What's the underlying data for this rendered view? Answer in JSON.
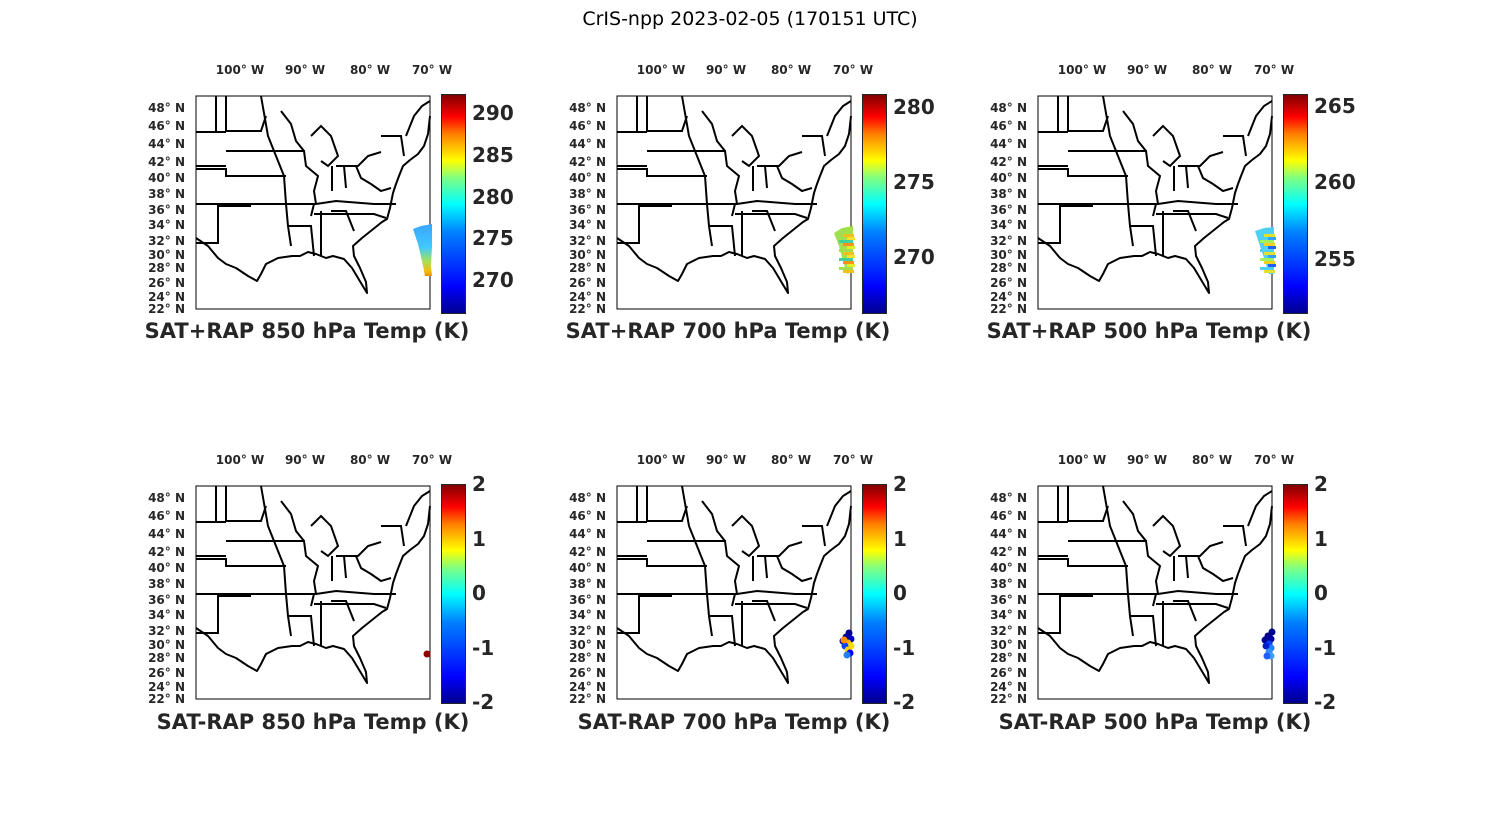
{
  "suptitle": "CrIS-npp 2023-02-05 (170151 UTC)",
  "lon_ticks": [
    "100° W",
    "90° W",
    "80° W",
    "70° W"
  ],
  "lat_ticks": [
    "48° N",
    "46° N",
    "44° N",
    "42° N",
    "40° N",
    "38° N",
    "36° N",
    "34° N",
    "32° N",
    "30° N",
    "28° N",
    "26° N",
    "24° N",
    "22° N"
  ],
  "panels": [
    {
      "title": "SAT+RAP 850 hPa Temp (K)",
      "clim": [
        266.2,
        292.3
      ],
      "ticks": [
        290,
        285,
        280,
        275,
        270
      ],
      "swath": "p850"
    },
    {
      "title": "SAT+RAP 700 hPa Temp (K)",
      "clim": [
        266.3,
        280.9
      ],
      "ticks": [
        280,
        275,
        270
      ],
      "swath": "p700"
    },
    {
      "title": "SAT+RAP 500 hPa Temp (K)",
      "clim": [
        251.5,
        265.8
      ],
      "ticks": [
        265,
        260,
        255
      ],
      "swath": "p500"
    },
    {
      "title": "SAT-RAP 850 hPa Temp (K)",
      "clim": [
        -2,
        2
      ],
      "ticks": [
        2,
        1,
        0,
        -1,
        -2
      ],
      "swath": "d850"
    },
    {
      "title": "SAT-RAP 700 hPa Temp (K)",
      "clim": [
        -2,
        2
      ],
      "ticks": [
        2,
        1,
        0,
        -1,
        -2
      ],
      "swath": "d700"
    },
    {
      "title": "SAT-RAP 500 hPa Temp (K)",
      "clim": [
        -2,
        2
      ],
      "ticks": [
        2,
        1,
        0,
        -1,
        -2
      ],
      "swath": "d500"
    }
  ]
}
